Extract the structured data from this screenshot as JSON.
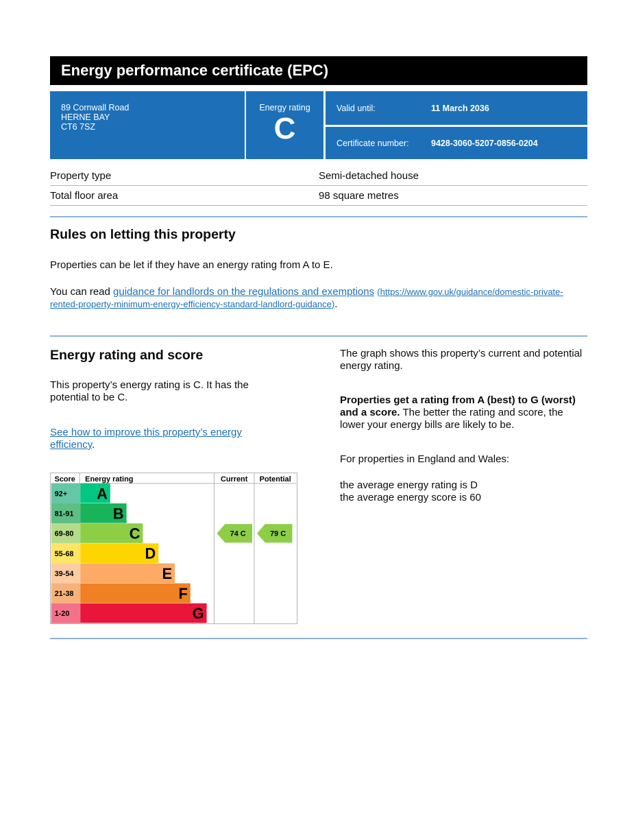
{
  "header": {
    "title": "Energy performance certificate (EPC)"
  },
  "summary": {
    "address": [
      "89 Cornwall Road",
      "HERNE BAY",
      "CT6 7SZ"
    ],
    "rating_label": "Energy rating",
    "rating": "C",
    "valid_label": "Valid until:",
    "valid_value": "11 March 2036",
    "cert_label": "Certificate number:",
    "cert_value": "9428-3060-5207-0856-0204",
    "color": "#1d70b8"
  },
  "property": [
    {
      "label": "Property type",
      "value": "Semi-detached house"
    },
    {
      "label": "Total floor area",
      "value": "98 square metres"
    }
  ],
  "letting": {
    "heading": "Rules on letting this property",
    "p1": "Properties can be let if they have an energy rating from A to E.",
    "p2_prefix": "You can read ",
    "link": "guidance for landlords on the regulations and exemptions",
    "url": "(https://www.gov.uk/guidance/domestic-private-rented-property-minimum-energy-efficiency-standard-landlord-guidance)",
    "p2_suffix": "."
  },
  "score": {
    "heading": "Energy rating and score",
    "p1": "This property’s energy rating is C. It has the potential to be C.",
    "link": "See how to improve this property’s energy efficiency",
    "link_suffix": ".",
    "right_p1": "The graph shows this property’s current and potential energy rating.",
    "right_bold": "Properties get a rating from A (best) to G (worst) and a score.",
    "right_p2": " The better the rating and score, the lower your energy bills are likely to be.",
    "right_p3": "For properties in England and Wales:",
    "right_p4": "the average energy rating is D",
    "right_p5": "the average energy score is 60"
  },
  "chart_data": {
    "type": "table",
    "headers": {
      "score": "Score",
      "rating": "Energy rating",
      "current": "Current",
      "potential": "Potential"
    },
    "bands": [
      {
        "range": "92+",
        "letter": "A",
        "color": "#00c781",
        "light": "#66c7a6"
      },
      {
        "range": "81-91",
        "letter": "B",
        "color": "#19b459",
        "light": "#5ebf85"
      },
      {
        "range": "69-80",
        "letter": "C",
        "color": "#8dce46",
        "light": "#b5dc8a"
      },
      {
        "range": "55-68",
        "letter": "D",
        "color": "#ffd500",
        "light": "#ffe566"
      },
      {
        "range": "39-54",
        "letter": "E",
        "color": "#fcaa65",
        "light": "#fdcca3"
      },
      {
        "range": "21-38",
        "letter": "F",
        "color": "#ef8023",
        "light": "#f5b37b"
      },
      {
        "range": "1-20",
        "letter": "G",
        "color": "#e9153b",
        "light": "#f27389"
      }
    ],
    "current": {
      "score": 74,
      "letter": "C",
      "label": "74  C"
    },
    "potential": {
      "score": 79,
      "letter": "C",
      "label": "79  C"
    }
  }
}
